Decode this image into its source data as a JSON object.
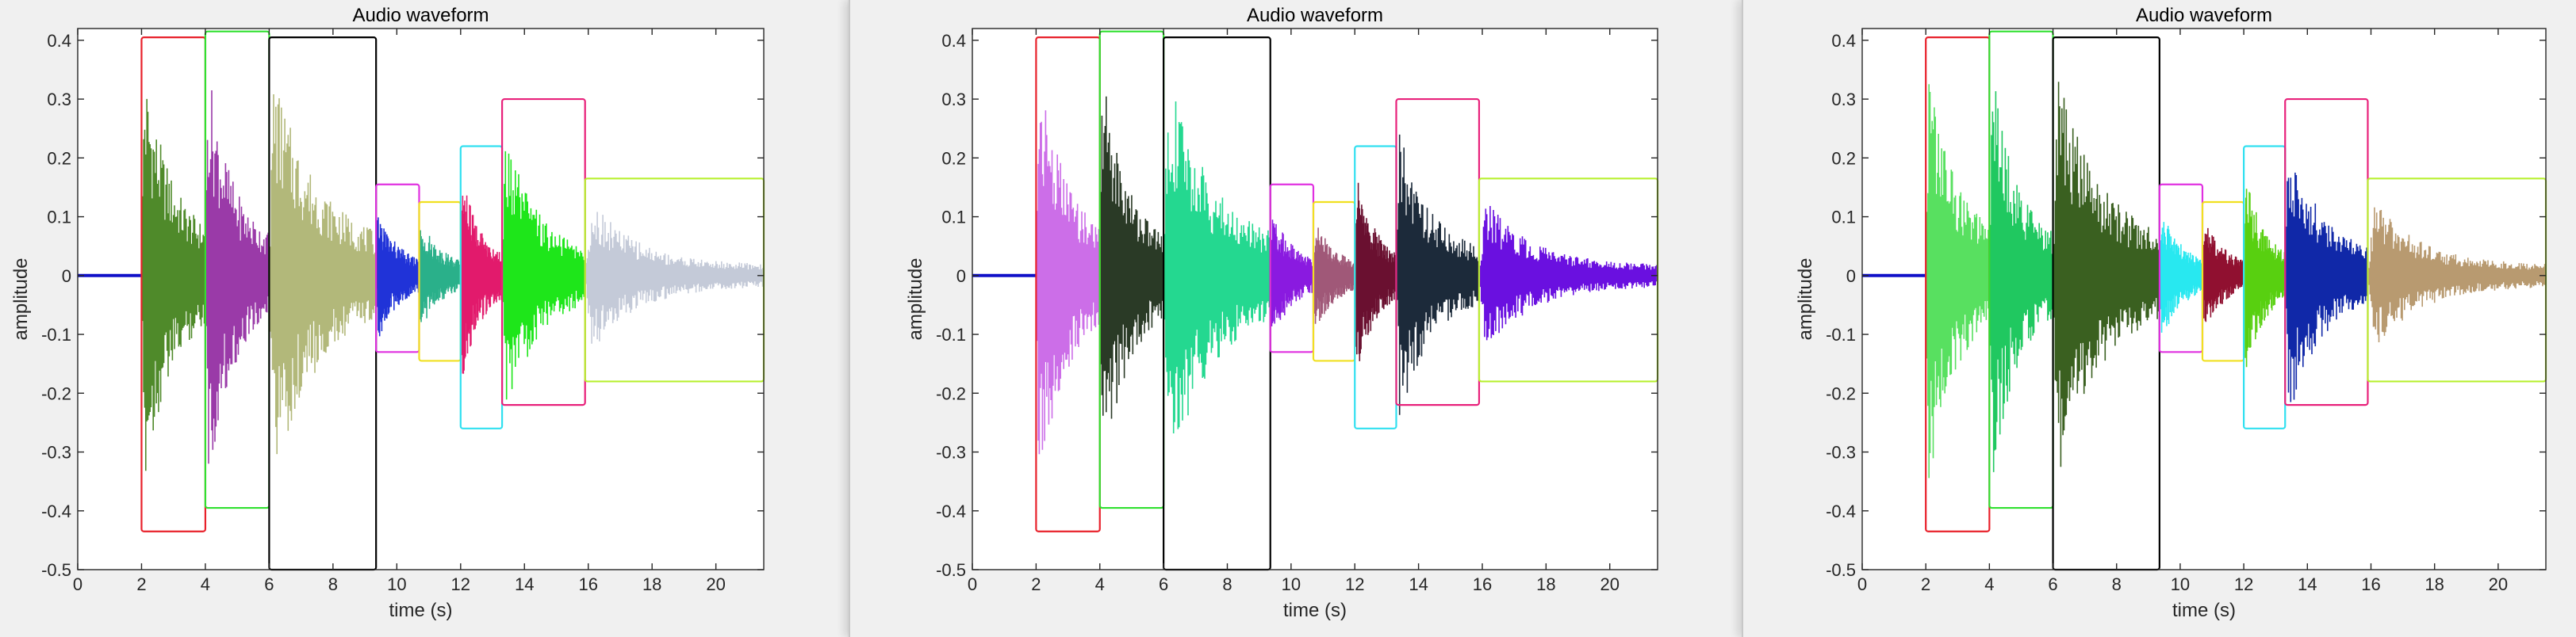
{
  "chart_data": [
    {
      "type": "line",
      "title": "Audio waveform",
      "xlabel": "time (s)",
      "ylabel": "amplitude",
      "xlim": [
        0,
        21.5
      ],
      "ylim": [
        -0.5,
        0.42
      ],
      "xticks": [
        "0",
        "2",
        "4",
        "6",
        "8",
        "10",
        "12",
        "14",
        "16",
        "18",
        "20"
      ],
      "yticks": [
        "-0.5",
        "-0.4",
        "-0.3",
        "-0.2",
        "-0.1",
        "0",
        "0.1",
        "0.2",
        "0.3",
        "0.4"
      ],
      "grid": false,
      "lead_in": {
        "x": [
          0,
          2.0
        ],
        "color": "#1010c8"
      },
      "segments": [
        {
          "x": [
            2.0,
            4.0
          ],
          "peak": 0.39,
          "decay": 2.2,
          "fill": "#4f8a2a",
          "box": {
            "y": [
              -0.435,
              0.405
            ],
            "color": "#e8202a"
          }
        },
        {
          "x": [
            4.0,
            6.0
          ],
          "peak": 0.4,
          "decay": 2.6,
          "fill": "#9a3aa8",
          "box": {
            "y": [
              -0.395,
              0.415
            ],
            "color": "#30e030"
          }
        },
        {
          "x": [
            6.0,
            9.35
          ],
          "peak": 0.38,
          "decay": 2.4,
          "fill": "#b2b87a",
          "box": {
            "y": [
              -0.5,
              0.405
            ],
            "color": "#000000"
          }
        },
        {
          "x": [
            9.35,
            10.7
          ],
          "peak": 0.12,
          "decay": 2.0,
          "fill": "#2033d8",
          "box": {
            "y": [
              -0.13,
              0.155
            ],
            "color": "#e030e0"
          }
        },
        {
          "x": [
            10.7,
            12.0
          ],
          "peak": 0.1,
          "decay": 1.8,
          "fill": "#2ab08a",
          "box": {
            "y": [
              -0.145,
              0.125
            ],
            "color": "#f0e020"
          }
        },
        {
          "x": [
            12.0,
            13.3
          ],
          "peak": 0.19,
          "decay": 2.2,
          "fill": "#e21a6c",
          "box": {
            "y": [
              -0.26,
              0.22
            ],
            "color": "#30e0f0"
          }
        },
        {
          "x": [
            13.3,
            15.9
          ],
          "peak": 0.27,
          "decay": 2.6,
          "fill": "#1ee61a",
          "box": {
            "y": [
              -0.22,
              0.3
            ],
            "color": "#e8207a"
          }
        },
        {
          "x": [
            15.9,
            21.5
          ],
          "peak": 0.15,
          "decay": 4.0,
          "fill": "#c4cad8",
          "box": {
            "y": [
              -0.18,
              0.165
            ],
            "color": "#b8f030"
          }
        }
      ]
    },
    {
      "type": "line",
      "title": "Audio waveform",
      "xlabel": "time (s)",
      "ylabel": "amplitude",
      "xlim": [
        0,
        21.5
      ],
      "ylim": [
        -0.5,
        0.42
      ],
      "xticks": [
        "0",
        "2",
        "4",
        "6",
        "8",
        "10",
        "12",
        "14",
        "16",
        "18",
        "20"
      ],
      "yticks": [
        "-0.5",
        "-0.4",
        "-0.3",
        "-0.2",
        "-0.1",
        "0",
        "0.1",
        "0.2",
        "0.3",
        "0.4"
      ],
      "grid": false,
      "lead_in": {
        "x": [
          0,
          2.0
        ],
        "color": "#1010c8"
      },
      "segments": [
        {
          "x": [
            2.0,
            4.0
          ],
          "peak": 0.39,
          "decay": 2.2,
          "fill": "#cc6ee8",
          "box": {
            "y": [
              -0.435,
              0.405
            ],
            "color": "#e8202a"
          }
        },
        {
          "x": [
            4.0,
            6.0
          ],
          "peak": 0.4,
          "decay": 2.6,
          "fill": "#2a3a26",
          "box": {
            "y": [
              -0.395,
              0.415
            ],
            "color": "#30e030"
          }
        },
        {
          "x": [
            6.0,
            9.35
          ],
          "peak": 0.38,
          "decay": 2.4,
          "fill": "#24d890",
          "box": {
            "y": [
              -0.5,
              0.405
            ],
            "color": "#000000"
          }
        },
        {
          "x": [
            9.35,
            10.7
          ],
          "peak": 0.12,
          "decay": 2.0,
          "fill": "#8a1ae0",
          "box": {
            "y": [
              -0.13,
              0.155
            ],
            "color": "#e030e0"
          }
        },
        {
          "x": [
            10.7,
            12.0
          ],
          "peak": 0.1,
          "decay": 1.8,
          "fill": "#a05878",
          "box": {
            "y": [
              -0.145,
              0.125
            ],
            "color": "#f0e020"
          }
        },
        {
          "x": [
            12.0,
            13.3
          ],
          "peak": 0.19,
          "decay": 2.2,
          "fill": "#6a1030",
          "box": {
            "y": [
              -0.26,
              0.22
            ],
            "color": "#30e0f0"
          }
        },
        {
          "x": [
            13.3,
            15.9
          ],
          "peak": 0.27,
          "decay": 2.6,
          "fill": "#1c2a3a",
          "box": {
            "y": [
              -0.22,
              0.3
            ],
            "color": "#e8207a"
          }
        },
        {
          "x": [
            15.9,
            21.5
          ],
          "peak": 0.15,
          "decay": 4.0,
          "fill": "#6a10e0",
          "box": {
            "y": [
              -0.18,
              0.165
            ],
            "color": "#b8f030"
          }
        }
      ]
    },
    {
      "type": "line",
      "title": "Audio waveform",
      "xlabel": "time (s)",
      "ylabel": "amplitude",
      "xlim": [
        0,
        21.5
      ],
      "ylim": [
        -0.5,
        0.42
      ],
      "xticks": [
        "0",
        "2",
        "4",
        "6",
        "8",
        "10",
        "12",
        "14",
        "16",
        "18",
        "20"
      ],
      "yticks": [
        "-0.5",
        "-0.4",
        "-0.3",
        "-0.2",
        "-0.1",
        "0",
        "0.1",
        "0.2",
        "0.3",
        "0.4"
      ],
      "grid": false,
      "lead_in": {
        "x": [
          0,
          2.0
        ],
        "color": "#1010c8"
      },
      "segments": [
        {
          "x": [
            2.0,
            4.0
          ],
          "peak": 0.39,
          "decay": 2.2,
          "fill": "#58e060",
          "box": {
            "y": [
              -0.435,
              0.405
            ],
            "color": "#e8202a"
          }
        },
        {
          "x": [
            4.0,
            6.0
          ],
          "peak": 0.4,
          "decay": 2.6,
          "fill": "#20c860",
          "box": {
            "y": [
              -0.395,
              0.415
            ],
            "color": "#30e030"
          }
        },
        {
          "x": [
            6.0,
            9.35
          ],
          "peak": 0.38,
          "decay": 2.4,
          "fill": "#3a6020",
          "box": {
            "y": [
              -0.5,
              0.405
            ],
            "color": "#000000"
          }
        },
        {
          "x": [
            9.35,
            10.7
          ],
          "peak": 0.12,
          "decay": 2.0,
          "fill": "#28e8f0",
          "box": {
            "y": [
              -0.13,
              0.155
            ],
            "color": "#e030e0"
          }
        },
        {
          "x": [
            10.7,
            12.0
          ],
          "peak": 0.1,
          "decay": 1.8,
          "fill": "#901030",
          "box": {
            "y": [
              -0.145,
              0.125
            ],
            "color": "#f0e020"
          }
        },
        {
          "x": [
            12.0,
            13.3
          ],
          "peak": 0.19,
          "decay": 2.2,
          "fill": "#58d010",
          "box": {
            "y": [
              -0.26,
              0.22
            ],
            "color": "#30e0f0"
          }
        },
        {
          "x": [
            13.3,
            15.9
          ],
          "peak": 0.27,
          "decay": 2.6,
          "fill": "#1028a8",
          "box": {
            "y": [
              -0.22,
              0.3
            ],
            "color": "#e8207a"
          }
        },
        {
          "x": [
            15.9,
            21.5
          ],
          "peak": 0.15,
          "decay": 4.0,
          "fill": "#b89a70",
          "box": {
            "y": [
              -0.18,
              0.165
            ],
            "color": "#b8f030"
          }
        }
      ]
    }
  ]
}
